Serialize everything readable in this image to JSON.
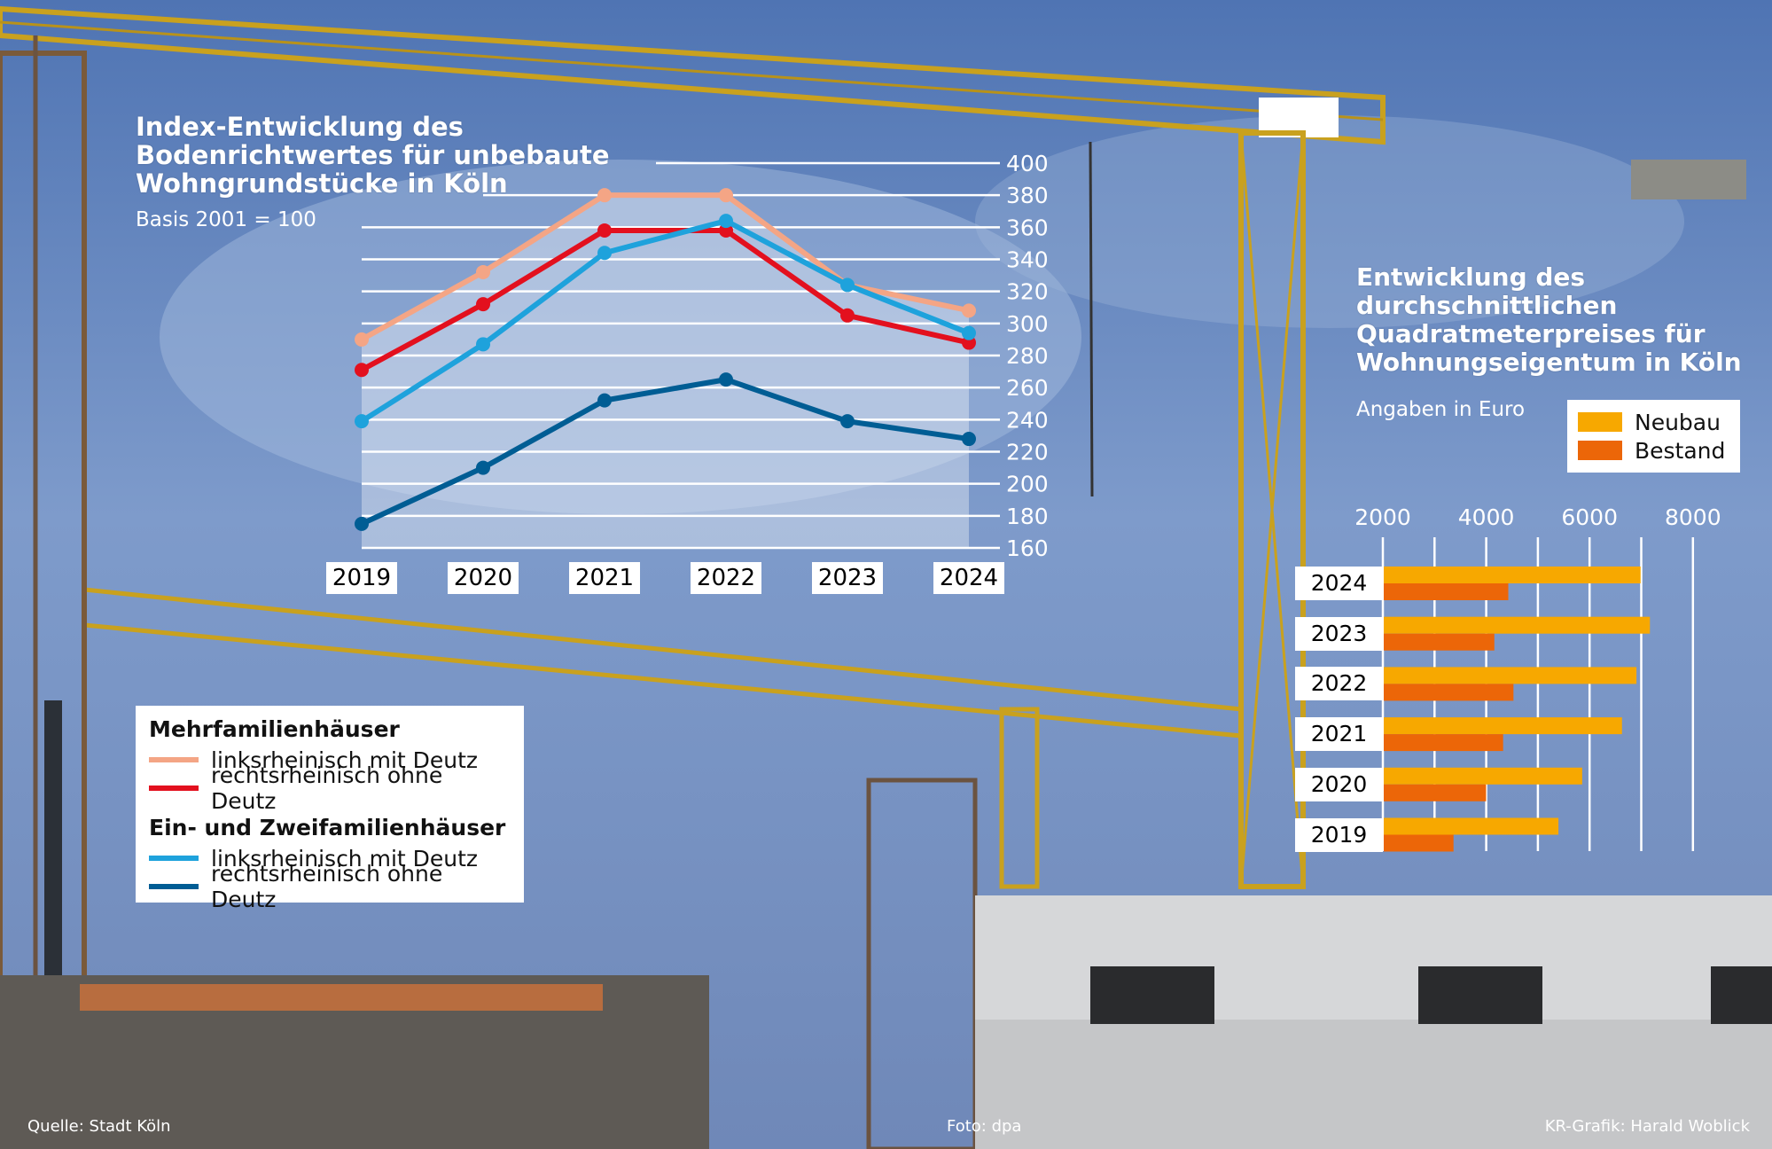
{
  "line_chart": {
    "chart_data": {
      "type": "line",
      "title": "Index-Entwicklung des Bodenrichtwertes für unbebaute Wohngrundstücke in Köln",
      "subtitle": "Basis 2001 = 100",
      "categories": [
        "2019",
        "2020",
        "2021",
        "2022",
        "2023",
        "2024"
      ],
      "ylim": [
        160,
        400
      ],
      "yticks": [
        "400",
        "380",
        "360",
        "340",
        "320",
        "300",
        "280",
        "260",
        "240",
        "220",
        "200",
        "180",
        "160"
      ],
      "grid": true,
      "series": [
        {
          "group": "Mehrfamilienhäuser",
          "name": "linksrheinisch mit Deutz",
          "color": "#f4a585",
          "values": [
            290,
            332,
            380,
            380,
            324,
            308
          ]
        },
        {
          "group": "Mehrfamilienhäuser",
          "name": "rechtsrheinisch ohne Deutz",
          "color": "#e3101e",
          "values": [
            271,
            312,
            358,
            358,
            305,
            288
          ]
        },
        {
          "group": "Ein- und Zweifamilienhäuser",
          "name": "linksrheinisch mit Deutz",
          "color": "#1ea2dc",
          "values": [
            239,
            287,
            344,
            364,
            324,
            294
          ]
        },
        {
          "group": "Ein- und Zweifamilienhäuser",
          "name": "rechtsrheinisch ohne Deutz",
          "color": "#005d94",
          "values": [
            175,
            210,
            252,
            265,
            239,
            228
          ]
        }
      ]
    },
    "title_lines": [
      "Index-Entwicklung des",
      "Bodenrichtwertes für unbebaute",
      "Wohngrundstücke in Köln"
    ],
    "legend": {
      "group1": "Mehrfamilienhäuser",
      "group2": "Ein- und Zweifamilienhäuser",
      "items": [
        "linksrheinisch mit Deutz",
        "rechtsrheinisch ohne Deutz",
        "linksrheinisch mit Deutz",
        "rechtsrheinisch ohne Deutz"
      ]
    }
  },
  "bar_chart": {
    "chart_data": {
      "type": "bar",
      "orientation": "horizontal",
      "title": "Entwicklung des durchschnittlichen Quadratmeterpreises für Wohnungseigentum in Köln",
      "subtitle": "Angaben in Euro",
      "categories": [
        "2024",
        "2023",
        "2022",
        "2021",
        "2020",
        "2019"
      ],
      "xlim": [
        2000,
        8000
      ],
      "xticks": [
        "2000",
        "4000",
        "6000",
        "8000"
      ],
      "grid": true,
      "legend_position": "top-right",
      "series": [
        {
          "name": "Neubau",
          "color": "#f7a800",
          "values": [
            6970,
            7150,
            6890,
            6610,
            5840,
            5380
          ]
        },
        {
          "name": "Bestand",
          "color": "#ec6608",
          "values": [
            4410,
            4140,
            4510,
            4310,
            3980,
            3350
          ]
        }
      ]
    },
    "title_lines": [
      "Entwicklung des",
      "durchschnittlichen",
      "Quadratmeterpreises für",
      "Wohnungseigentum in Köln"
    ]
  },
  "footer": {
    "source": "Quelle: Stadt Köln",
    "photo": "Foto: dpa",
    "credit": "KR-Grafik: Harald Woblick"
  }
}
